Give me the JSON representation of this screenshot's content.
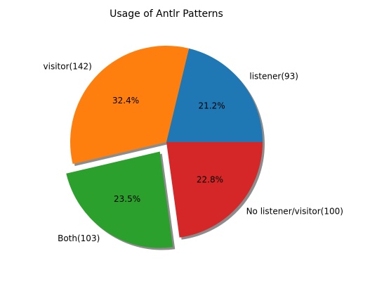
{
  "chart_data": {
    "type": "pie",
    "title": "Usage of Antlr Patterns",
    "slices": [
      {
        "label": "listener(93)",
        "value": 93,
        "percent_label": "21.2%",
        "color": "#1f77b4",
        "exploded": false
      },
      {
        "label": "visitor(142)",
        "value": 142,
        "percent_label": "32.4%",
        "color": "#ff7f0e",
        "exploded": false
      },
      {
        "label": "Both(103)",
        "value": 103,
        "percent_label": "23.5%",
        "color": "#2ca02c",
        "exploded": true
      },
      {
        "label": "No listener/visitor(100)",
        "value": 100,
        "percent_label": "22.8%",
        "color": "#d62728",
        "exploded": false
      }
    ],
    "start_angle_deg": 0,
    "direction": "counterclockwise",
    "shadow": true,
    "legend": "none"
  }
}
